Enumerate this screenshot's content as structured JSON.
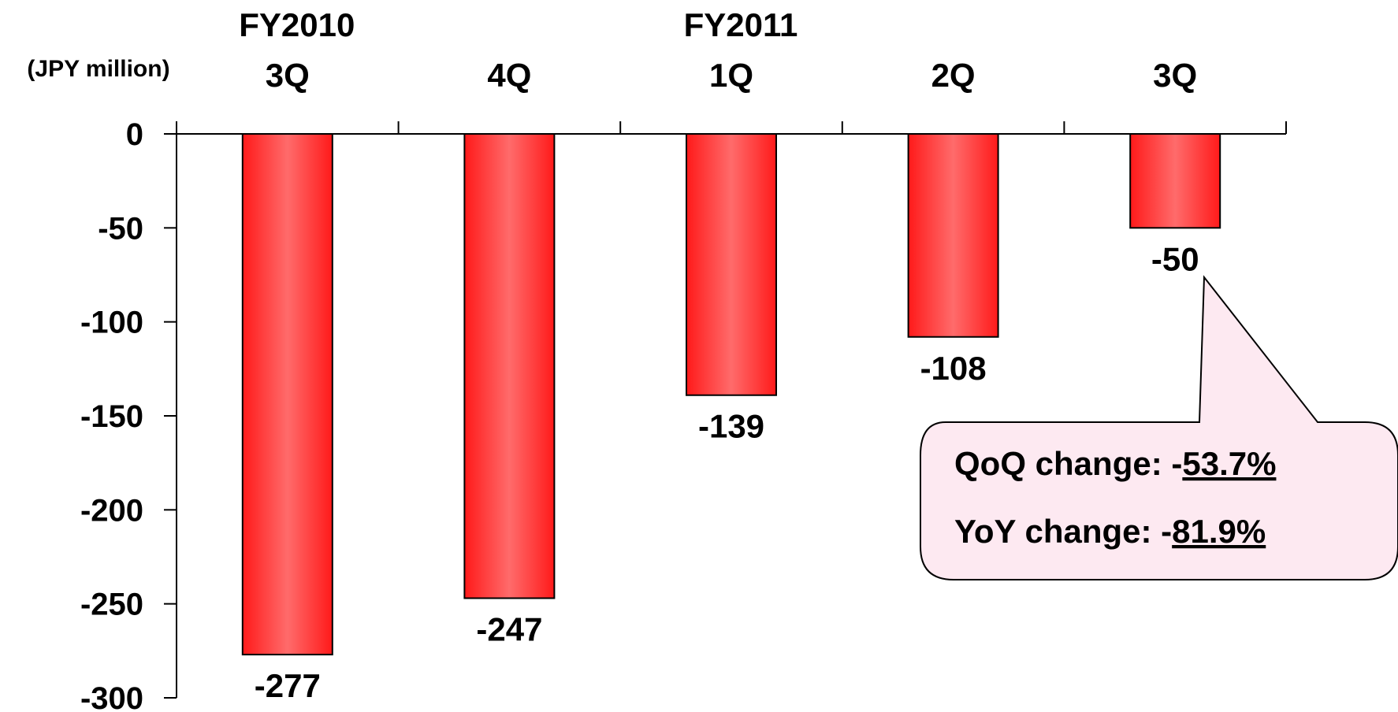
{
  "chart_data": {
    "type": "bar",
    "unit_label": "(JPY million)",
    "groups": [
      {
        "label": "FY2010",
        "start": 0
      },
      {
        "label": "FY2011",
        "start": 2
      }
    ],
    "categories": [
      "3Q",
      "4Q",
      "1Q",
      "2Q",
      "3Q"
    ],
    "values": [
      -277,
      -247,
      -139,
      -108,
      -50
    ],
    "data_labels": [
      "-277",
      "-247",
      "-139",
      "-108",
      "-50"
    ],
    "y_ticks": [
      "0",
      "-50",
      "-100",
      "-150",
      "-200",
      "-250",
      "-300"
    ],
    "ylim": [
      -300,
      0
    ],
    "x_axis_position": "top",
    "grid": false,
    "bar_color": "#ff1a1a",
    "bar_highlight_color": "#ff6b6b",
    "callout": {
      "qoq_label": "QoQ change: -",
      "qoq_value": "53.7%",
      "yoy_label": "YoY change: -",
      "yoy_value": "81.9%",
      "fill": "#fde9f1"
    }
  }
}
